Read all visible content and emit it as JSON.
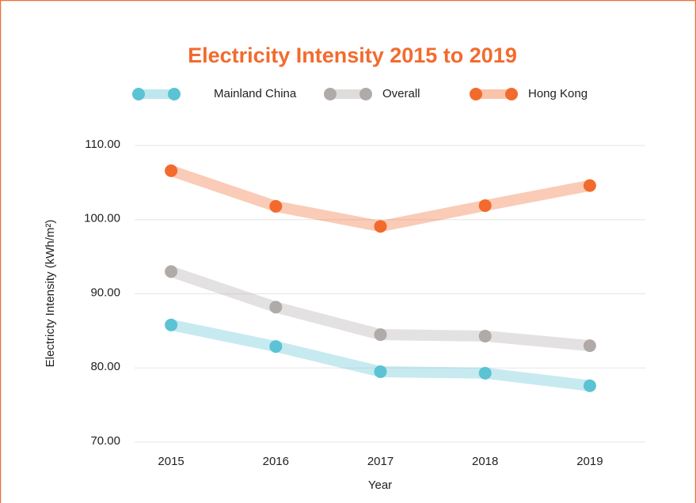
{
  "chart_data": {
    "type": "line",
    "title": "Electricity Intensity 2015 to 2019",
    "x_label": "Year",
    "y_label": "Electricty Intensity (kWh/m²)",
    "categories": [
      "2015",
      "2016",
      "2017",
      "2018",
      "2019"
    ],
    "series": [
      {
        "name": "Mainland China",
        "color": "#5bc3d3",
        "values": [
          85.8,
          82.9,
          79.5,
          79.3,
          77.6
        ]
      },
      {
        "name": "Overall",
        "color": "#b0aaa8",
        "values": [
          93.0,
          88.2,
          84.5,
          84.3,
          83.0
        ]
      },
      {
        "name": "Hong Kong",
        "color": "#f26b2d",
        "values": [
          106.6,
          101.8,
          99.1,
          101.9,
          104.6
        ]
      }
    ],
    "ylim": [
      70,
      110
    ],
    "yticks": [
      {
        "value": 70,
        "label": "70.00"
      },
      {
        "value": 80,
        "label": "80.00"
      },
      {
        "value": 90,
        "label": "90.00"
      },
      {
        "value": 100,
        "label": "100.00"
      },
      {
        "value": 110,
        "label": "110.00"
      }
    ],
    "grid": true,
    "legend": "top"
  }
}
